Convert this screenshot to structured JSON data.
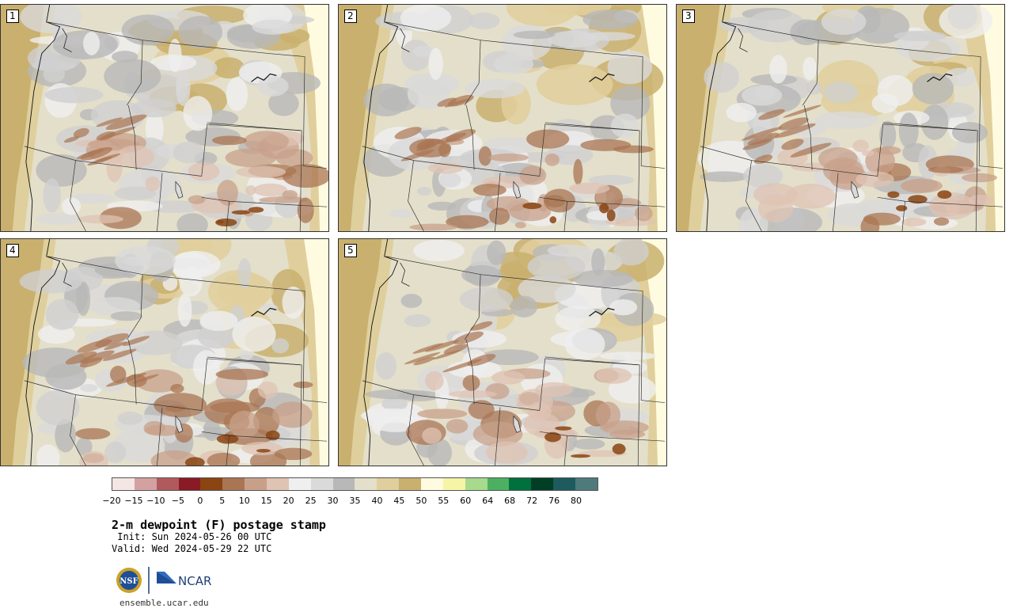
{
  "panels": [
    {
      "label": "1",
      "variant": 0
    },
    {
      "label": "2",
      "variant": 1
    },
    {
      "label": "3",
      "variant": 2
    },
    {
      "label": "4",
      "variant": 3
    },
    {
      "label": "5",
      "variant": 4
    }
  ],
  "colorbar": {
    "colors": [
      "#f3e6e4",
      "#d4a1a1",
      "#b05a5d",
      "#8a1a25",
      "#8a4513",
      "#aa7553",
      "#c8a08a",
      "#dfc3b3",
      "#efefef",
      "#dadada",
      "#b8b8b8",
      "#e3dfca",
      "#e0cf9c",
      "#c9b06e",
      "#fefbe0",
      "#f6f4a6",
      "#a7da8d",
      "#4caf61",
      "#00703c",
      "#003f26",
      "#1d5b5f",
      "#4e7a7b"
    ],
    "ticks": [
      "−20",
      "−15",
      "−10",
      "−5",
      "0",
      "5",
      "10",
      "15",
      "20",
      "25",
      "30",
      "35",
      "40",
      "45",
      "50",
      "55",
      "60",
      "64",
      "68",
      "72",
      "76",
      "80"
    ]
  },
  "title": "2-m dewpoint (F) postage stamp",
  "init": " Init: Sun 2024-05-26 00 UTC",
  "valid": "Valid: Wed 2024-05-29 22 UTC",
  "logos": {
    "nsf": "NSF",
    "ncar": "NCAR"
  },
  "footer": "ensemble.ucar.edu"
}
